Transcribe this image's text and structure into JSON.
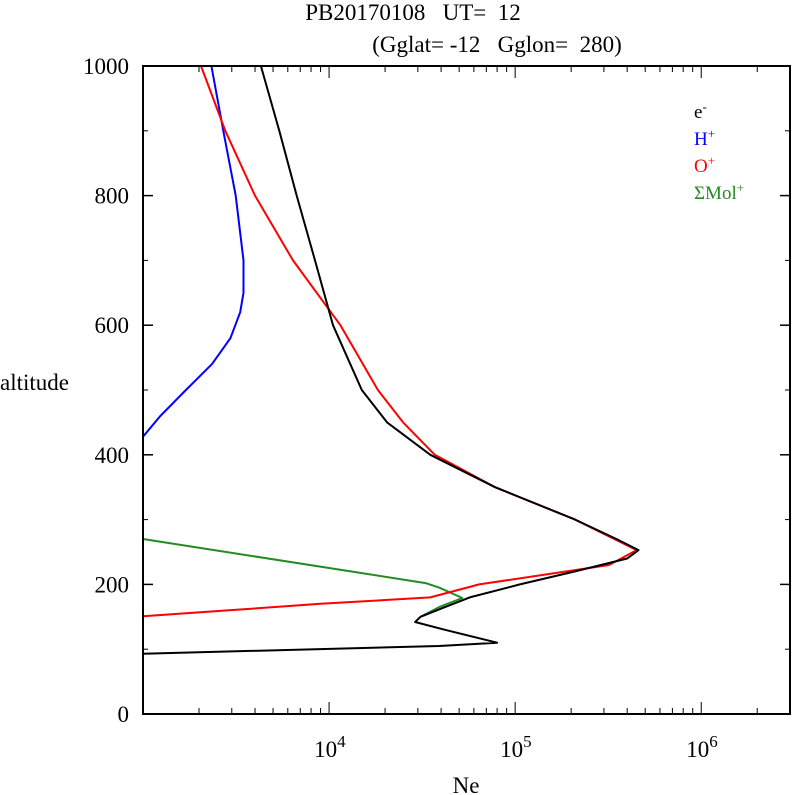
{
  "chart_data": {
    "type": "line",
    "title": "PB20170108   UT=  12",
    "subtitle": "(Gglat= -12   Gglon=  280)",
    "xlabel": "Ne",
    "ylabel": "altitude",
    "xscale": "log",
    "xlim": [
      1000,
      3000000
    ],
    "ylim": [
      0,
      1000
    ],
    "xticks": [
      {
        "base": "10",
        "exp": "4",
        "value": 10000
      },
      {
        "base": "10",
        "exp": "5",
        "value": 100000
      },
      {
        "base": "10",
        "exp": "6",
        "value": 1000000
      }
    ],
    "yticks": [
      {
        "label": "0",
        "value": 0
      },
      {
        "label": "200",
        "value": 200
      },
      {
        "label": "400",
        "value": 400
      },
      {
        "label": "600",
        "value": 600
      },
      {
        "label": "800",
        "value": 800
      },
      {
        "label": "1000",
        "value": 1000
      }
    ],
    "legend_position": "top-right",
    "series": [
      {
        "name": "e-",
        "label_main": "e",
        "label_sup": "-",
        "color": "#000000",
        "points": [
          [
            4300,
            1000
          ],
          [
            5400,
            900
          ],
          [
            6700,
            800
          ],
          [
            8400,
            700
          ],
          [
            10500,
            600
          ],
          [
            15000,
            500
          ],
          [
            20500,
            450
          ],
          [
            35000,
            400
          ],
          [
            78000,
            350
          ],
          [
            210000,
            300
          ],
          [
            350000,
            270
          ],
          [
            460000,
            253
          ],
          [
            400000,
            240
          ],
          [
            210000,
            220
          ],
          [
            106000,
            200
          ],
          [
            57000,
            180
          ],
          [
            42000,
            165
          ],
          [
            31000,
            150
          ],
          [
            29000,
            142
          ],
          [
            42000,
            130
          ],
          [
            80000,
            110
          ],
          [
            39000,
            105
          ],
          [
            1000,
            93
          ]
        ]
      },
      {
        "name": "H+",
        "label_main": "H",
        "label_sup": "+",
        "color": "#0000ff",
        "points": [
          [
            2330,
            1000
          ],
          [
            2700,
            900
          ],
          [
            3150,
            800
          ],
          [
            3470,
            700
          ],
          [
            3470,
            650
          ],
          [
            3330,
            620
          ],
          [
            2950,
            580
          ],
          [
            2350,
            540
          ],
          [
            1700,
            500
          ],
          [
            1240,
            460
          ],
          [
            1000,
            428
          ]
        ]
      },
      {
        "name": "O+",
        "label_main": "O",
        "label_sup": "+",
        "color": "#ff0000",
        "points": [
          [
            2050,
            1000
          ],
          [
            2770,
            900
          ],
          [
            4000,
            800
          ],
          [
            6400,
            700
          ],
          [
            11500,
            600
          ],
          [
            18300,
            500
          ],
          [
            25000,
            450
          ],
          [
            37000,
            400
          ],
          [
            78000,
            350
          ],
          [
            210000,
            300
          ],
          [
            450000,
            253
          ],
          [
            320000,
            230
          ],
          [
            64000,
            200
          ],
          [
            35000,
            180
          ],
          [
            9000,
            170
          ],
          [
            2900,
            160
          ],
          [
            1000,
            151
          ]
        ]
      },
      {
        "name": "ΣMol+",
        "label_main": "ΣMol",
        "label_sup": "+",
        "color": "#228b22",
        "points": [
          [
            1000,
            270
          ],
          [
            33000,
            202
          ],
          [
            39000,
            195
          ],
          [
            52000,
            179
          ],
          [
            39000,
            165
          ],
          [
            31000,
            150
          ]
        ]
      }
    ]
  }
}
